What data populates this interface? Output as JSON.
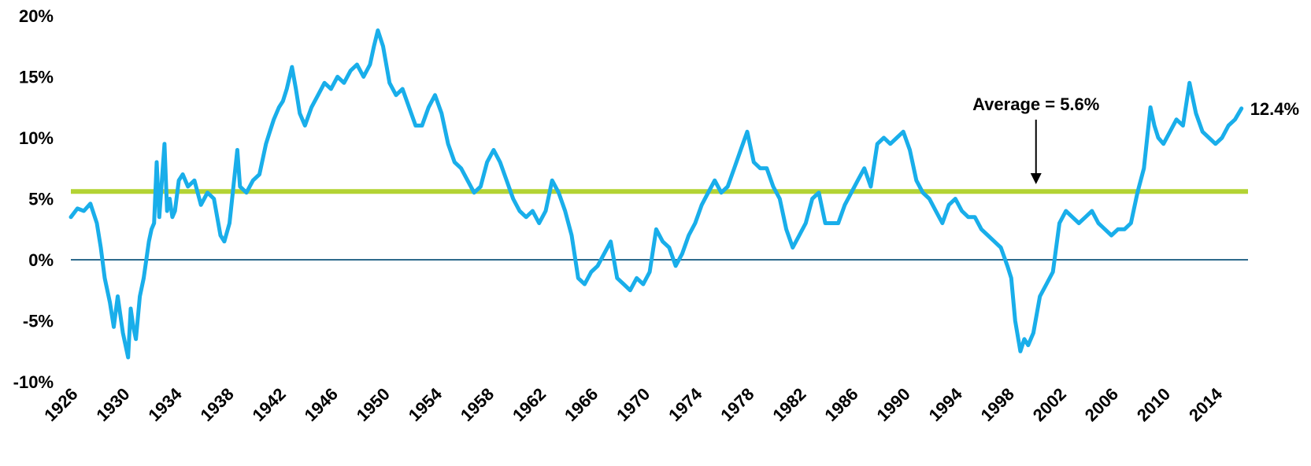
{
  "chart_data": {
    "type": "line",
    "title": "",
    "xlabel": "",
    "ylabel": "",
    "xlim": [
      1926,
      2016.5
    ],
    "ylim": [
      -10,
      20
    ],
    "y_ticks": [
      -10,
      -5,
      0,
      5,
      10,
      15,
      20
    ],
    "y_tick_labels": [
      "-10%",
      "-5%",
      "0%",
      "5%",
      "10%",
      "15%",
      "20%"
    ],
    "x_ticks": [
      1926,
      1930,
      1934,
      1938,
      1942,
      1946,
      1950,
      1954,
      1958,
      1962,
      1966,
      1970,
      1974,
      1978,
      1982,
      1986,
      1990,
      1994,
      1998,
      2002,
      2006,
      2010,
      2014
    ],
    "x_tick_labels": [
      "1926",
      "1930",
      "1934",
      "1938",
      "1942",
      "1946",
      "1950",
      "1954",
      "1958",
      "1962",
      "1966",
      "1970",
      "1974",
      "1978",
      "1982",
      "1986",
      "1990",
      "1994",
      "1998",
      "2002",
      "2006",
      "2010",
      "2014"
    ],
    "grid": false,
    "legend": "none",
    "colors": {
      "series": "#19AEEA",
      "average": "#B3D334",
      "zero_line": "#2E6A8C"
    },
    "average": {
      "value": 5.6,
      "label": "Average = 5.6%"
    },
    "end_label": "12.4%",
    "series": [
      {
        "x": [
          1926.0,
          1926.5,
          1927.0,
          1927.5,
          1928.0,
          1928.3,
          1928.6,
          1929.0,
          1929.3,
          1929.6,
          1929.8,
          1930.0,
          1930.2,
          1930.4,
          1930.6,
          1930.8,
          1931.0,
          1931.3,
          1931.6,
          1932.0,
          1932.2,
          1932.4,
          1932.6,
          1932.8,
          1933.0,
          1933.2,
          1933.4,
          1933.6,
          1933.8,
          1934.0,
          1934.3,
          1934.6,
          1935.0,
          1935.5,
          1936.0,
          1936.5,
          1937.0,
          1937.5,
          1937.8,
          1938.2,
          1938.6,
          1938.8,
          1939.0,
          1939.5,
          1940.0,
          1940.5,
          1941.0,
          1941.3,
          1941.6,
          1942.0,
          1942.3,
          1942.6,
          1943.0,
          1943.3,
          1943.6,
          1944.0,
          1944.5,
          1945.0,
          1945.5,
          1946.0,
          1946.5,
          1947.0,
          1947.5,
          1948.0,
          1948.5,
          1949.0,
          1949.3,
          1949.6,
          1950.0,
          1950.5,
          1951.0,
          1951.5,
          1952.0,
          1952.5,
          1953.0,
          1953.5,
          1954.0,
          1954.5,
          1955.0,
          1955.5,
          1956.0,
          1956.5,
          1957.0,
          1957.5,
          1958.0,
          1958.5,
          1959.0,
          1959.5,
          1960.0,
          1960.5,
          1961.0,
          1961.5,
          1962.0,
          1962.5,
          1963.0,
          1963.5,
          1964.0,
          1964.5,
          1965.0,
          1965.5,
          1966.0,
          1966.5,
          1967.0,
          1967.5,
          1968.0,
          1968.5,
          1969.0,
          1969.5,
          1970.0,
          1970.5,
          1971.0,
          1971.5,
          1972.0,
          1972.5,
          1973.0,
          1973.5,
          1974.0,
          1974.5,
          1975.0,
          1975.5,
          1976.0,
          1976.5,
          1977.0,
          1977.5,
          1978.0,
          1978.5,
          1979.0,
          1979.5,
          1980.0,
          1980.5,
          1981.0,
          1981.5,
          1982.0,
          1982.5,
          1983.0,
          1983.5,
          1984.0,
          1984.5,
          1985.0,
          1985.5,
          1986.0,
          1986.5,
          1987.0,
          1987.5,
          1988.0,
          1988.5,
          1989.0,
          1989.5,
          1990.0,
          1990.5,
          1991.0,
          1991.5,
          1992.0,
          1992.5,
          1993.0,
          1993.5,
          1994.0,
          1994.5,
          1995.0,
          1995.5,
          1996.0,
          1996.5,
          1997.0,
          1997.5,
          1998.0,
          1998.3,
          1998.6,
          1999.0,
          1999.3,
          1999.6,
          2000.0,
          2000.5,
          2001.0,
          2001.5,
          2002.0,
          2002.5,
          2003.0,
          2003.5,
          2004.0,
          2004.5,
          2005.0,
          2005.5,
          2006.0,
          2006.5,
          2007.0,
          2007.5,
          2008.0,
          2008.5,
          2009.0,
          2009.3,
          2009.6,
          2010.0,
          2010.5,
          2011.0,
          2011.5,
          2012.0,
          2012.5,
          2013.0,
          2013.5,
          2014.0,
          2014.5,
          2015.0,
          2015.5,
          2016.0
        ],
        "y": [
          3.5,
          4.2,
          4.0,
          4.6,
          3.0,
          1.0,
          -1.5,
          -3.5,
          -5.5,
          -3.0,
          -4.5,
          -6.0,
          -7.0,
          -8.0,
          -4.0,
          -5.5,
          -6.5,
          -3.0,
          -1.5,
          1.5,
          2.5,
          3.0,
          8.0,
          3.5,
          6.5,
          9.5,
          4.0,
          5.0,
          3.5,
          4.0,
          6.5,
          7.0,
          6.0,
          6.5,
          4.5,
          5.5,
          5.0,
          2.0,
          1.5,
          3.0,
          7.0,
          9.0,
          6.0,
          5.5,
          6.5,
          7.0,
          9.5,
          10.5,
          11.5,
          12.5,
          13.0,
          14.0,
          15.8,
          14.0,
          12.0,
          11.0,
          12.5,
          13.5,
          14.5,
          14.0,
          15.0,
          14.5,
          15.5,
          16.0,
          15.0,
          16.0,
          17.5,
          18.8,
          17.5,
          14.5,
          13.5,
          14.0,
          12.5,
          11.0,
          11.0,
          12.5,
          13.5,
          12.0,
          9.5,
          8.0,
          7.5,
          6.5,
          5.5,
          6.0,
          8.0,
          9.0,
          8.0,
          6.5,
          5.0,
          4.0,
          3.5,
          4.0,
          3.0,
          4.0,
          6.5,
          5.5,
          4.0,
          2.0,
          -1.5,
          -2.0,
          -1.0,
          -0.5,
          0.5,
          1.5,
          -1.5,
          -2.0,
          -2.5,
          -1.5,
          -2.0,
          -1.0,
          2.5,
          1.5,
          1.0,
          -0.5,
          0.5,
          2.0,
          3.0,
          4.5,
          5.5,
          6.5,
          5.5,
          6.0,
          7.5,
          9.0,
          10.5,
          8.0,
          7.5,
          7.5,
          6.0,
          5.0,
          2.5,
          1.0,
          2.0,
          3.0,
          5.0,
          5.5,
          3.0,
          3.0,
          3.0,
          4.5,
          5.5,
          6.5,
          7.5,
          6.0,
          9.5,
          10.0,
          9.5,
          10.0,
          10.5,
          9.0,
          6.5,
          5.5,
          5.0,
          4.0,
          3.0,
          4.5,
          5.0,
          4.0,
          3.5,
          3.5,
          2.5,
          2.0,
          1.5,
          1.0,
          -0.5,
          -1.5,
          -5.0,
          -7.5,
          -6.5,
          -7.0,
          -6.0,
          -3.0,
          -2.0,
          -1.0,
          3.0,
          4.0,
          3.5,
          3.0,
          3.5,
          4.0,
          3.0,
          2.5,
          2.0,
          2.5,
          2.5,
          3.0,
          5.5,
          7.5,
          12.5,
          11.0,
          10.0,
          9.5,
          10.5,
          11.5,
          11.0,
          14.5,
          12.0,
          10.5,
          10.0,
          9.5,
          10.0,
          11.0,
          11.5,
          12.4
        ]
      }
    ]
  }
}
